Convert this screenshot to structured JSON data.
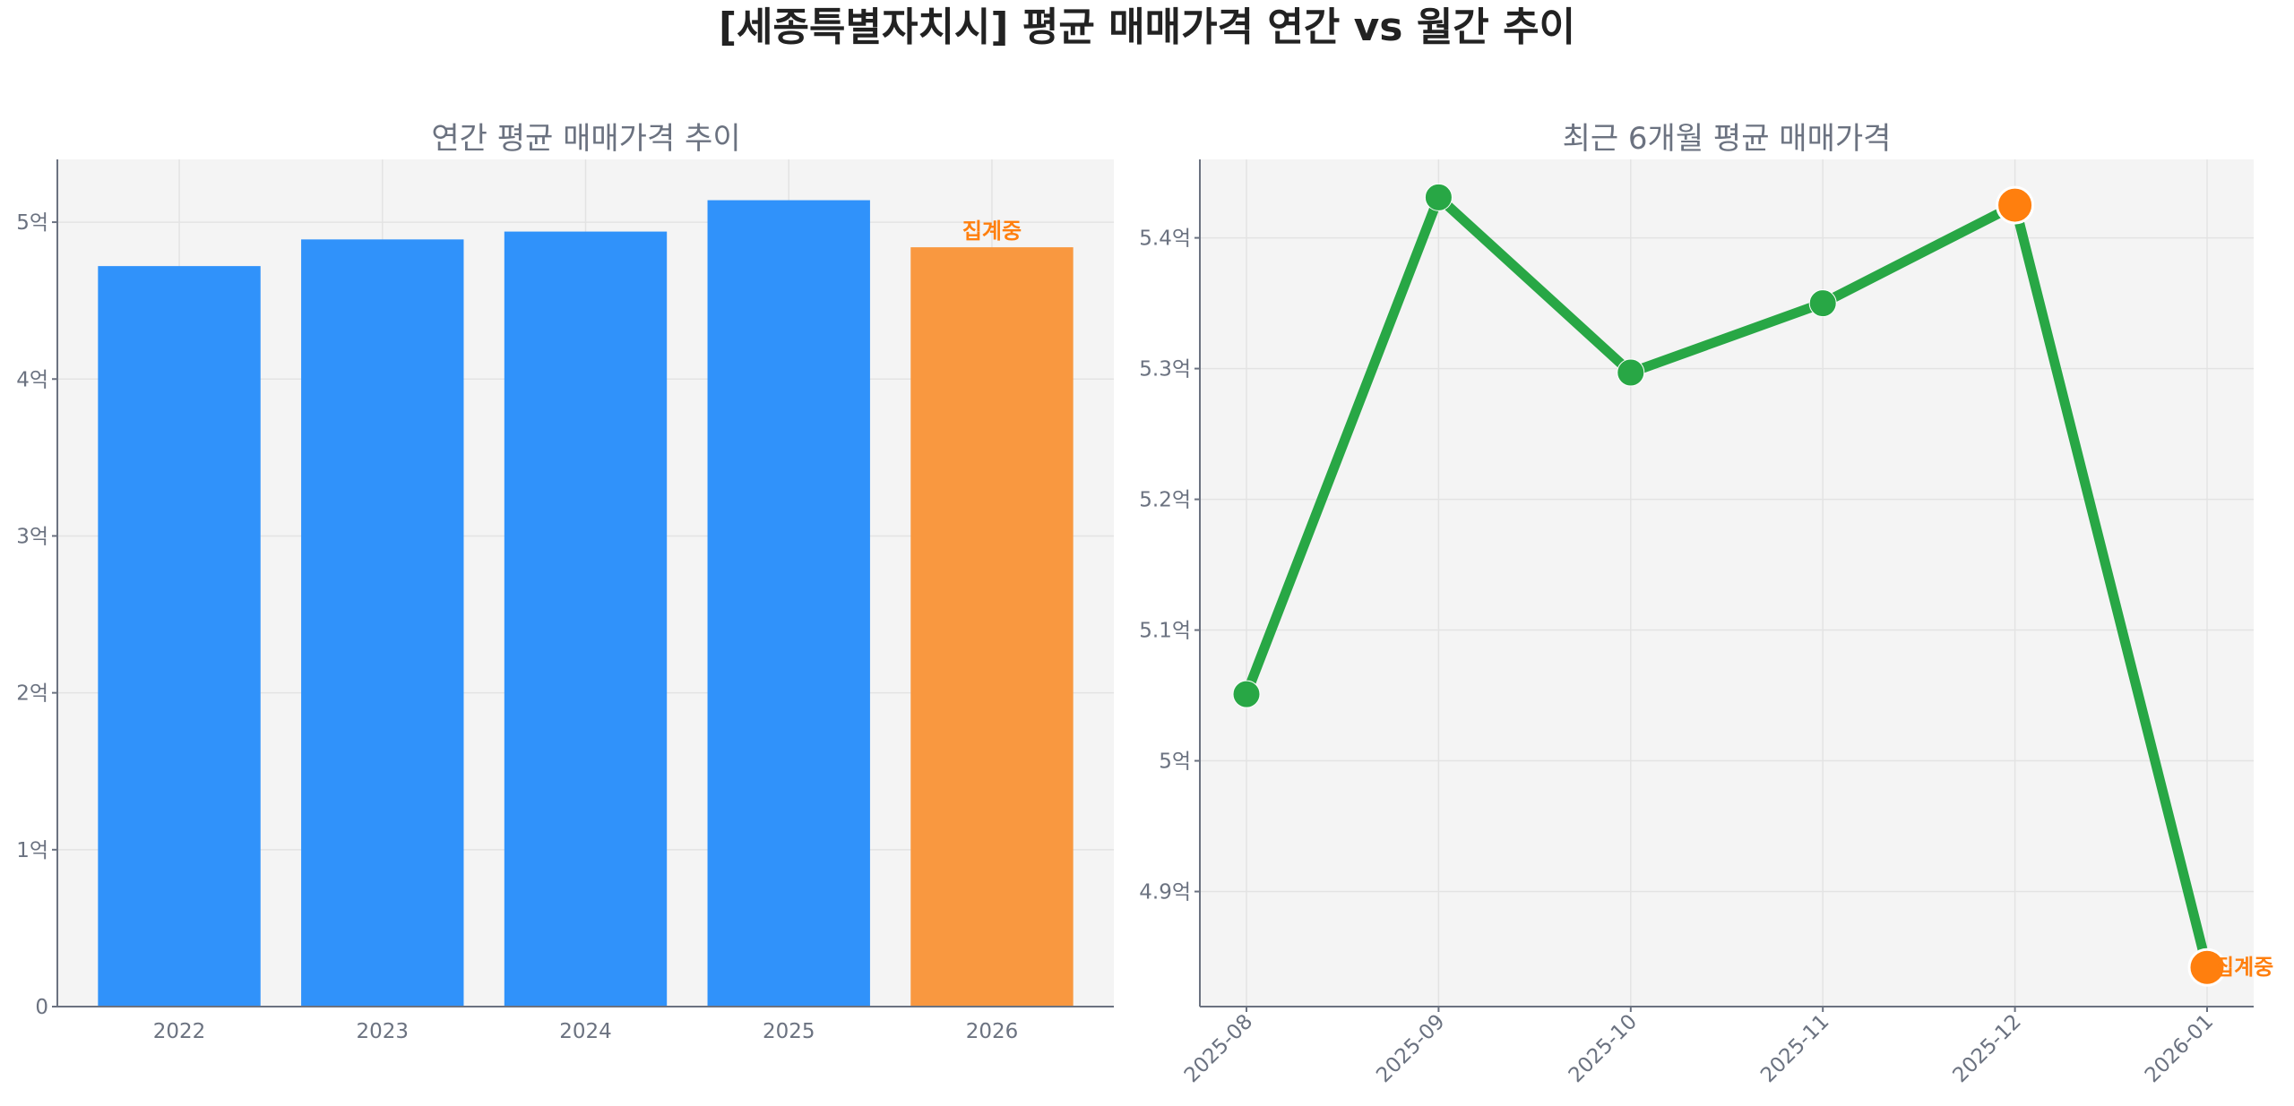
{
  "title": "[세종특별자치시] 평균 매매가격 연간 vs 월간 추이",
  "colors": {
    "bar": "#3092fa",
    "bar_partial": "#f99840",
    "line": "#28a745",
    "highlight": "#ff7f0e",
    "panel_bg": "#f4f4f4"
  },
  "chart_data": [
    {
      "type": "bar",
      "title": "연간 평균 매매가격 추이",
      "categories": [
        "2022",
        "2023",
        "2024",
        "2025",
        "2026"
      ],
      "values": [
        4.72,
        4.89,
        4.94,
        5.14,
        4.84
      ],
      "unit": "억",
      "partial_index": 4,
      "annotation": "집계중",
      "yticks": [
        0,
        1,
        2,
        3,
        4,
        5
      ],
      "ytick_labels": [
        "0",
        "1억",
        "2억",
        "3억",
        "4억",
        "5억"
      ],
      "ylim": [
        0,
        5.4
      ],
      "grid": true
    },
    {
      "type": "line",
      "title": "최근 6개월 평균 매매가격",
      "categories": [
        "2025-08",
        "2025-09",
        "2025-10",
        "2025-11",
        "2025-12",
        "2026-01"
      ],
      "values": [
        5.051,
        5.431,
        5.297,
        5.35,
        5.425,
        4.842
      ],
      "unit": "억",
      "highlight_indices": [
        4,
        5
      ],
      "annotation": "집계중",
      "yticks": [
        4.9,
        5.0,
        5.1,
        5.2,
        5.3,
        5.4
      ],
      "ytick_labels": [
        "4.9억",
        "5억",
        "5.1억",
        "5.2억",
        "5.3억",
        "5.4억"
      ],
      "ylim": [
        4.812,
        5.46
      ],
      "grid": true
    }
  ]
}
